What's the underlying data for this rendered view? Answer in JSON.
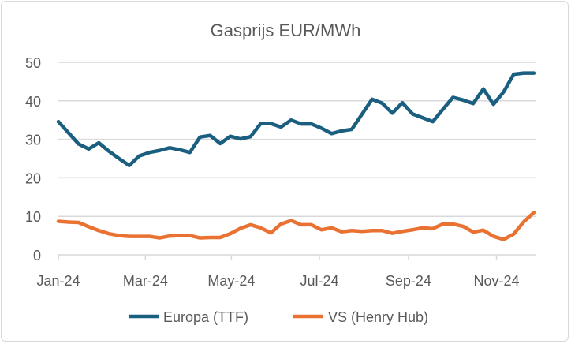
{
  "chart_data": {
    "type": "line",
    "title": "Gasprijs EUR/MWh",
    "xlabel": "",
    "ylabel": "",
    "ylim": [
      0,
      50
    ],
    "yticks": [
      0,
      10,
      20,
      30,
      40,
      50
    ],
    "grid": true,
    "legend_position": "bottom",
    "x": [
      0,
      1,
      2,
      3,
      4,
      5,
      6,
      7,
      8,
      9,
      10,
      11,
      12,
      13,
      14,
      15,
      16,
      17,
      18,
      19,
      20,
      21,
      22,
      23,
      24,
      25,
      26,
      27,
      28,
      29,
      30,
      31,
      32,
      33,
      34,
      35,
      36,
      37,
      38,
      39,
      40,
      41,
      42,
      43,
      44,
      45,
      46,
      47
    ],
    "xlim": [
      0,
      47
    ],
    "xticks": [
      {
        "label": "Jan-24",
        "at": 0
      },
      {
        "label": "Mar-24",
        "at": 8.6
      },
      {
        "label": "May-24",
        "at": 17.1
      },
      {
        "label": "Jul-24",
        "at": 25.8
      },
      {
        "label": "Sep-24",
        "at": 34.6
      },
      {
        "label": "Nov-24",
        "at": 43.3
      }
    ],
    "series": [
      {
        "name": "Europa (TTF)",
        "color": "#1a5f7f",
        "values": [
          34.6,
          31.7,
          28.8,
          27.5,
          29.1,
          26.9,
          25.0,
          23.2,
          25.7,
          26.6,
          27.1,
          27.8,
          27.3,
          26.6,
          30.6,
          31.0,
          28.9,
          30.8,
          30.1,
          30.7,
          34.1,
          34.1,
          33.2,
          35.0,
          34.0,
          34.0,
          32.9,
          31.5,
          32.2,
          32.6,
          36.5,
          40.4,
          39.4,
          36.8,
          39.5,
          36.6,
          35.6,
          34.6,
          37.8,
          40.9,
          40.2,
          39.3,
          43.1,
          39.1,
          42.3,
          46.9,
          47.2,
          47.2
        ]
      },
      {
        "name": "VS (Henry Hub)",
        "color": "#e97132",
        "values": [
          8.7,
          8.5,
          8.4,
          7.3,
          6.3,
          5.5,
          5.0,
          4.8,
          4.8,
          4.8,
          4.4,
          4.9,
          5.0,
          5.0,
          4.4,
          4.5,
          4.5,
          5.5,
          6.9,
          7.8,
          7.0,
          5.7,
          8.0,
          8.9,
          7.8,
          7.8,
          6.5,
          7.0,
          6.0,
          6.3,
          6.1,
          6.3,
          6.3,
          5.6,
          6.1,
          6.5,
          7.0,
          6.8,
          8.0,
          8.0,
          7.4,
          5.9,
          6.4,
          4.8,
          4.0,
          5.4,
          8.6,
          11.0
        ]
      }
    ]
  }
}
